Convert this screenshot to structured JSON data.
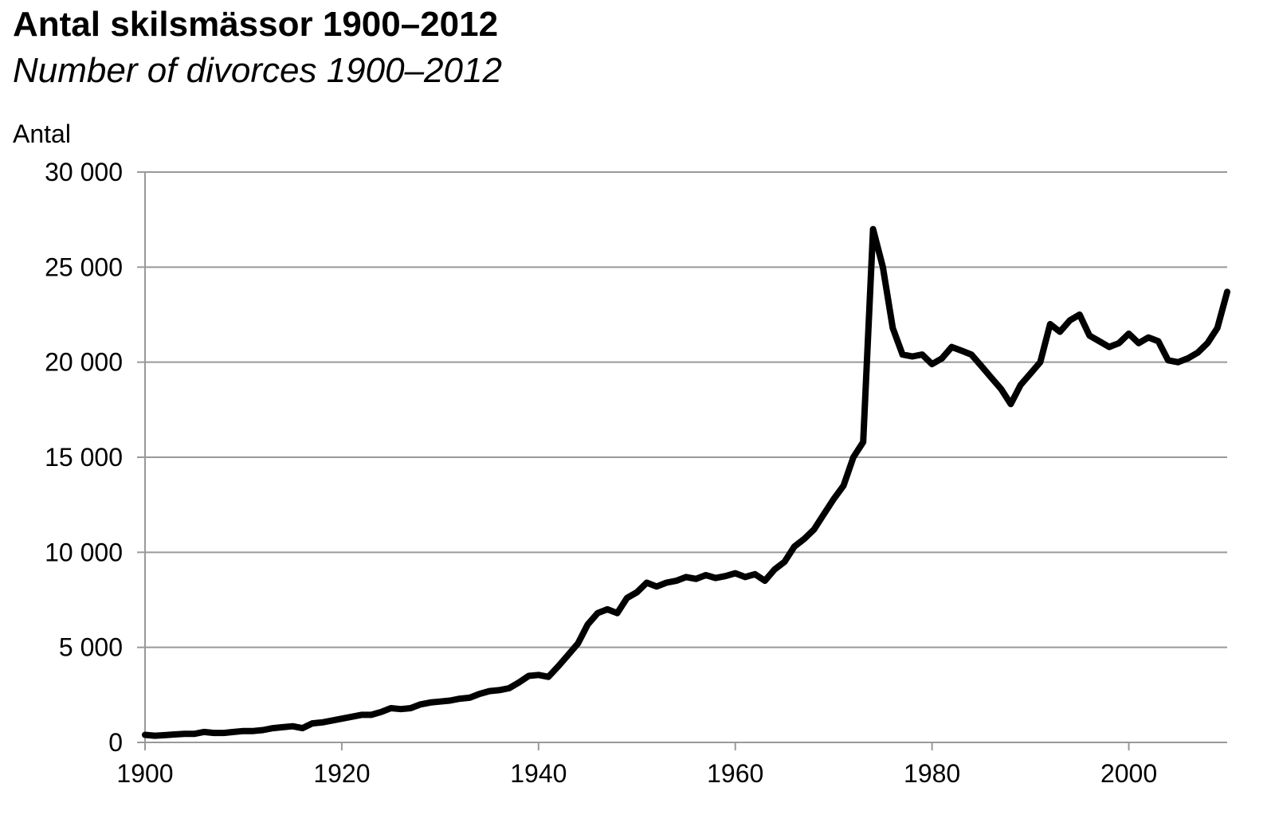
{
  "chart_data": {
    "type": "line",
    "title": "Antal skilsmässor 1900–2012",
    "subtitle": "Number of divorces 1900–2012",
    "ylabel": "Antal",
    "xlabel": "",
    "xlim": [
      1900,
      2010
    ],
    "ylim": [
      0,
      30000
    ],
    "x_ticks": [
      1900,
      1920,
      1940,
      1960,
      1980,
      2000
    ],
    "y_ticks": [
      0,
      5000,
      10000,
      15000,
      20000,
      25000,
      30000
    ],
    "y_tick_labels": [
      "0",
      "5 000",
      "10 000",
      "15 000",
      "20 000",
      "25 000",
      "30 000"
    ],
    "grid": "horizontal",
    "line_color": "#000000",
    "grid_color": "#999999",
    "series": [
      {
        "x": [
          1900,
          1901,
          1902,
          1903,
          1904,
          1905,
          1906,
          1907,
          1908,
          1909,
          1910,
          1911,
          1912,
          1913,
          1914,
          1915,
          1916,
          1917,
          1918,
          1919,
          1920,
          1921,
          1922,
          1923,
          1924,
          1925,
          1926,
          1927,
          1928,
          1929,
          1930,
          1931,
          1932,
          1933,
          1934,
          1935,
          1936,
          1937,
          1938,
          1939,
          1940,
          1941,
          1942,
          1943,
          1944,
          1945,
          1946,
          1947,
          1948,
          1949,
          1950,
          1951,
          1952,
          1953,
          1954,
          1955,
          1956,
          1957,
          1958,
          1959,
          1960,
          1961,
          1962,
          1963,
          1964,
          1965,
          1966,
          1967,
          1968,
          1969,
          1970,
          1971,
          1972,
          1973,
          1974,
          1975,
          1976,
          1977,
          1978,
          1979,
          1980,
          1981,
          1982,
          1983,
          1984,
          1985,
          1986,
          1987,
          1988,
          1989,
          1990,
          1991,
          1992,
          1993,
          1994,
          1995,
          1996,
          1997,
          1998,
          1999,
          2000,
          2001,
          2002,
          2003,
          2004,
          2005,
          2006,
          2007,
          2008,
          2009,
          2010
        ],
        "values": [
          400,
          350,
          380,
          420,
          450,
          450,
          550,
          500,
          500,
          550,
          600,
          600,
          650,
          750,
          800,
          850,
          750,
          1000,
          1050,
          1150,
          1250,
          1350,
          1450,
          1450,
          1600,
          1800,
          1750,
          1800,
          2000,
          2100,
          2150,
          2200,
          2300,
          2350,
          2550,
          2700,
          2750,
          2850,
          3150,
          3500,
          3550,
          3450,
          4000,
          4600,
          5200,
          6200,
          6800,
          7000,
          6800,
          7600,
          7900,
          8400,
          8200,
          8400,
          8500,
          8700,
          8600,
          8800,
          8650,
          8750,
          8900,
          8700,
          8850,
          8500,
          9100,
          9500,
          10300,
          10700,
          11200,
          12000,
          12800,
          13500,
          15000,
          15800,
          27000,
          25000,
          21800,
          20400,
          20300,
          20400,
          19900,
          20200,
          20800,
          20600,
          20400,
          19800,
          19200,
          18600,
          17800,
          18800,
          19400,
          20000,
          22000,
          21600,
          22200,
          22500,
          21400,
          21100,
          20800,
          21000,
          21500,
          21000,
          21300,
          21100,
          20100,
          20000,
          20200,
          20500,
          21000,
          21800,
          23700
        ]
      }
    ]
  }
}
